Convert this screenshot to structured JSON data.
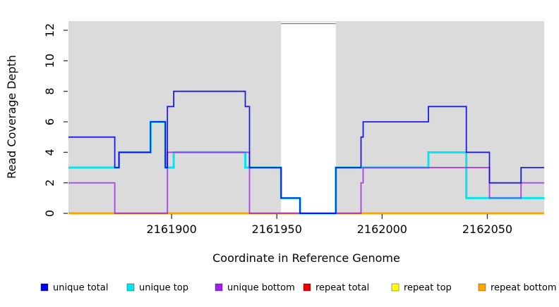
{
  "chart_data": {
    "type": "step-line",
    "title": "",
    "xlabel": "Coordinate in Reference Genome",
    "ylabel": "Read Coverage Depth",
    "xlim": [
      2161851,
      2162077
    ],
    "ylim": [
      0,
      12.6
    ],
    "x_ticks": [
      {
        "value": 2161900,
        "label": "2161900"
      },
      {
        "value": 2161950,
        "label": "2161950"
      },
      {
        "value": 2162000,
        "label": "2162000"
      },
      {
        "value": 2162050,
        "label": "2162050"
      }
    ],
    "y_ticks": [
      {
        "value": 0,
        "label": "0"
      },
      {
        "value": 2,
        "label": "2"
      },
      {
        "value": 4,
        "label": "4"
      },
      {
        "value": 6,
        "label": "6"
      },
      {
        "value": 8,
        "label": "8"
      },
      {
        "value": 10,
        "label": "10"
      },
      {
        "value": 12,
        "label": "12"
      }
    ],
    "panel_background": "#DBDBDB",
    "masked_region": {
      "start": 2161952,
      "end": 2161978,
      "fill": "#FFFFFF",
      "border": "#8A8A8A"
    },
    "series": [
      {
        "name": "unique total",
        "color": "#0000EE",
        "steps": [
          [
            2161851,
            5
          ],
          [
            2161873,
            3
          ],
          [
            2161875,
            4
          ],
          [
            2161890,
            6
          ],
          [
            2161897,
            3
          ],
          [
            2161898,
            7
          ],
          [
            2161901,
            8
          ],
          [
            2161935,
            7
          ],
          [
            2161937,
            3
          ],
          [
            2161952,
            1
          ],
          [
            2161961,
            0
          ],
          [
            2161978,
            3
          ],
          [
            2161990,
            5
          ],
          [
            2161991,
            6
          ],
          [
            2162022,
            7
          ],
          [
            2162040,
            4
          ],
          [
            2162051,
            2
          ],
          [
            2162066,
            3
          ]
        ]
      },
      {
        "name": "unique top",
        "color": "#00E5EE",
        "steps": [
          [
            2161851,
            3
          ],
          [
            2161875,
            4
          ],
          [
            2161890,
            6
          ],
          [
            2161897,
            3
          ],
          [
            2161901,
            4
          ],
          [
            2161935,
            3
          ],
          [
            2161952,
            1
          ],
          [
            2161961,
            0
          ],
          [
            2161978,
            3
          ],
          [
            2162022,
            4
          ],
          [
            2162040,
            1
          ]
        ]
      },
      {
        "name": "unique bottom",
        "color": "#A020F0",
        "steps": [
          [
            2161851,
            2
          ],
          [
            2161873,
            0
          ],
          [
            2161898,
            4
          ],
          [
            2161937,
            0
          ],
          [
            2161990,
            2
          ],
          [
            2161991,
            3
          ],
          [
            2162051,
            1
          ],
          [
            2162066,
            2
          ]
        ]
      },
      {
        "name": "repeat total",
        "color": "#EE0000",
        "steps": [
          [
            2161851,
            0
          ]
        ]
      },
      {
        "name": "repeat top",
        "color": "#FFFF00",
        "steps": [
          [
            2161851,
            0
          ]
        ]
      },
      {
        "name": "repeat bottom",
        "color": "#FFA500",
        "steps": [
          [
            2161851,
            0
          ]
        ]
      }
    ],
    "legend_position": "bottom"
  },
  "legend": {
    "items": [
      {
        "label": "unique total",
        "color": "#0000EE"
      },
      {
        "label": "unique top",
        "color": "#00E5EE"
      },
      {
        "label": "unique bottom",
        "color": "#A020F0"
      },
      {
        "label": "repeat total",
        "color": "#EE0000"
      },
      {
        "label": "repeat top",
        "color": "#FFFF00"
      },
      {
        "label": "repeat bottom",
        "color": "#FFA500"
      }
    ]
  }
}
